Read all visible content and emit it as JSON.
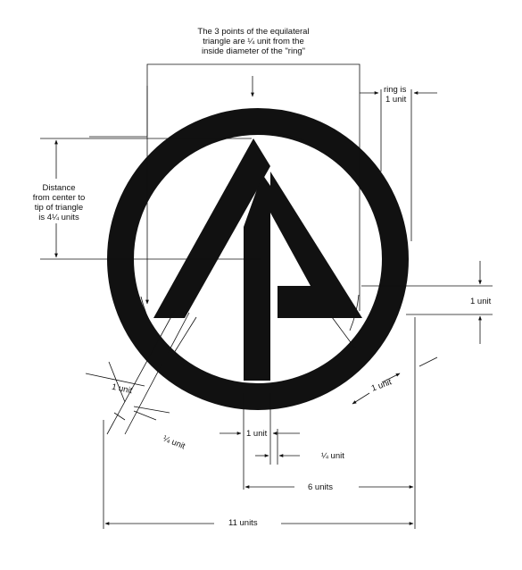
{
  "diagram": {
    "notes": {
      "top_line1": "The 3 points of the equilateral",
      "top_line2": "triangle are ¼ unit from the",
      "top_line3": "inside diameter of the \"ring\"",
      "ring_line1": "ring is",
      "ring_line2": "1 unit",
      "distance_line1": "Distance",
      "distance_line2": "from center to",
      "distance_line3": "tip of triangle",
      "distance_line4": "is 4¼ units"
    },
    "dimensions": {
      "right_unit": "1 unit",
      "lower_left_unit": "1 unit",
      "lower_left_quarter": "¼ unit",
      "lower_right_unit": "1 unit",
      "stem_unit": "1 unit",
      "stem_quarter": "¼ unit",
      "six_units": "6 units",
      "eleven_units": "11 units"
    },
    "colors": {
      "ink": "#111111",
      "paper": "#ffffff"
    }
  }
}
